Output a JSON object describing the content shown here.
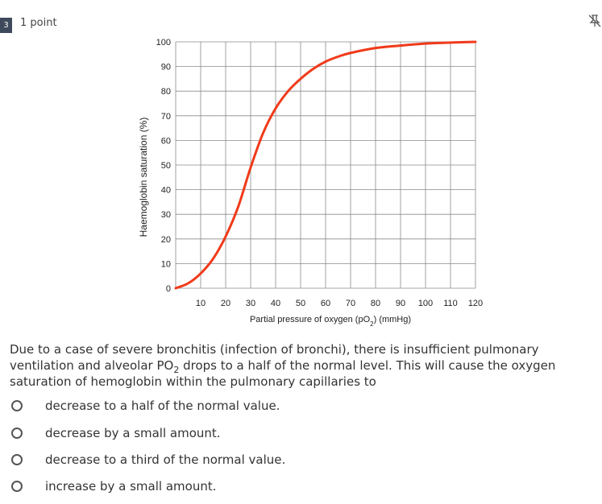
{
  "question": {
    "number": "3",
    "points_label": "1 point",
    "stem_parts": {
      "before": "Due to a case of severe bronchitis (infection of bronchi), there is insufficient pulmonary ventilation and alveolar PO",
      "sub": "2",
      "after": " drops to a half of the normal level. This will cause the oxygen saturation of hemoglobin within the pulmonary capillaries to"
    },
    "options": [
      {
        "label": "decrease to a half of the normal value."
      },
      {
        "label": "decrease by a small amount."
      },
      {
        "label": "decrease to a third of the normal value."
      },
      {
        "label": "increase by a small amount."
      }
    ]
  },
  "toolbar": {
    "pin_icon": "pin-icon"
  },
  "chart_data": {
    "type": "line",
    "xlabel_before": "Partial pressure of oxygen (pO",
    "xlabel_sub": "2",
    "xlabel_after": ") (mmHg)",
    "ylabel": "Haemoglobin saturation (%)",
    "xlim": [
      0,
      120
    ],
    "ylim": [
      0,
      100
    ],
    "x_ticks": [
      "10",
      "20",
      "30",
      "40",
      "50",
      "60",
      "70",
      "80",
      "90",
      "100",
      "110",
      "120"
    ],
    "y_ticks": [
      "0",
      "10",
      "20",
      "30",
      "40",
      "50",
      "60",
      "70",
      "80",
      "90",
      "100"
    ],
    "grid": true,
    "line_color": "#f03a1a",
    "series": [
      {
        "x": [
          0,
          5,
          10,
          15,
          20,
          25,
          30,
          35,
          40,
          45,
          50,
          55,
          60,
          65,
          70,
          80,
          90,
          100,
          110,
          120
        ],
        "y": [
          0,
          2,
          6,
          12,
          21,
          33,
          49,
          63,
          73,
          80,
          85,
          89,
          92,
          94,
          95.5,
          97.5,
          98.5,
          99.3,
          99.7,
          100
        ]
      }
    ]
  }
}
